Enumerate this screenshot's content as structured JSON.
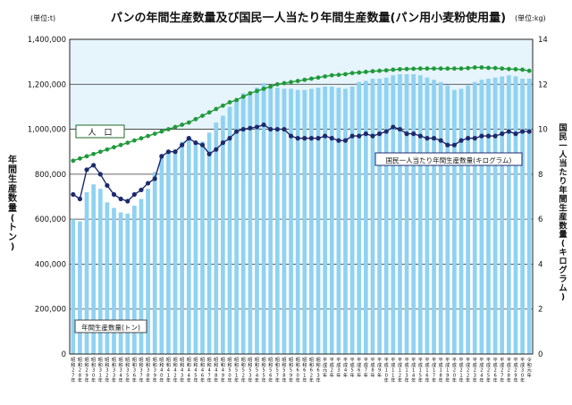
{
  "chart_data": {
    "type": "bar",
    "title": "パンの年間生産数量及び国民一人当たり年間生産数量(パン用小麦粉使用量)",
    "left_unit": "(単位:t)",
    "right_unit": "(単位:kg)",
    "ylabel_left": "年間生産数量(トン)",
    "ylabel_right": "国民一人当たり年間生産数量(キログラム)",
    "ylim_left": [
      0,
      1400000
    ],
    "ylim_right": [
      0,
      14
    ],
    "yticks_left": [
      "0",
      "200,000",
      "400,000",
      "600,000",
      "800,000",
      "1,000,000",
      "1,200,000",
      "1,400,000"
    ],
    "yticks_right": [
      "0",
      "2",
      "4",
      "6",
      "8",
      "10",
      "12",
      "14"
    ],
    "grid": true,
    "categories": [
      "昭和27年",
      "昭和28年",
      "昭和29年",
      "昭和30年",
      "昭和31年",
      "昭和32年",
      "昭和33年",
      "昭和34年",
      "昭和35年",
      "昭和36年",
      "昭和37年",
      "昭和38年",
      "昭和39年",
      "昭和40年",
      "昭和41年",
      "昭和42年",
      "昭和43年",
      "昭和44年",
      "昭和45年",
      "昭和46年",
      "昭和47年",
      "昭和48年",
      "昭和49年",
      "昭和50年",
      "昭和51年",
      "昭和52年",
      "昭和53年",
      "昭和54年",
      "昭和55年",
      "昭和56年",
      "昭和57年",
      "昭和58年",
      "昭和59年",
      "昭和60年",
      "昭和61年",
      "昭和62年",
      "昭和63年",
      "平成元年",
      "平成2年",
      "平成3年",
      "平成4年",
      "平成5年",
      "平成6年",
      "平成7年",
      "平成8年",
      "平成9年",
      "平成10年",
      "平成11年",
      "平成12年",
      "平成13年",
      "平成14年",
      "平成15年",
      "平成16年",
      "平成17年",
      "平成18年",
      "平成19年",
      "平成20年",
      "平成21年",
      "平成22年",
      "平成23年",
      "平成24年",
      "平成25年",
      "平成26年",
      "平成27年",
      "平成28年",
      "平成29年",
      "平成30年",
      "令和元年"
    ],
    "series": [
      {
        "name": "年間生産数量(トン)",
        "type": "bar",
        "axis": "left",
        "color": "#8fd2f2",
        "values": [
          600000,
          590000,
          720000,
          755000,
          735000,
          675000,
          650000,
          630000,
          625000,
          660000,
          690000,
          735000,
          810000,
          875000,
          895000,
          910000,
          945000,
          965000,
          945000,
          945000,
          985000,
          1030000,
          1060000,
          1100000,
          1130000,
          1160000,
          1160000,
          1185000,
          1205000,
          1195000,
          1185000,
          1180000,
          1180000,
          1175000,
          1175000,
          1180000,
          1185000,
          1190000,
          1190000,
          1185000,
          1180000,
          1190000,
          1210000,
          1215000,
          1225000,
          1225000,
          1230000,
          1240000,
          1245000,
          1245000,
          1245000,
          1240000,
          1230000,
          1220000,
          1210000,
          1195000,
          1175000,
          1180000,
          1195000,
          1210000,
          1220000,
          1225000,
          1230000,
          1235000,
          1240000,
          1235000,
          1225000,
          1225000
        ]
      },
      {
        "name": "人口",
        "type": "line",
        "axis": "right",
        "color": "#1f9a3a",
        "values": [
          8.6,
          8.7,
          8.8,
          8.9,
          9.0,
          9.1,
          9.2,
          9.3,
          9.4,
          9.5,
          9.6,
          9.7,
          9.8,
          9.9,
          10.0,
          10.1,
          10.2,
          10.3,
          10.45,
          10.6,
          10.75,
          10.9,
          11.05,
          11.2,
          11.3,
          11.45,
          11.6,
          11.7,
          11.8,
          11.9,
          12.0,
          12.05,
          12.1,
          12.15,
          12.2,
          12.25,
          12.3,
          12.35,
          12.4,
          12.42,
          12.45,
          12.5,
          12.52,
          12.55,
          12.58,
          12.6,
          12.62,
          12.65,
          12.67,
          12.68,
          12.69,
          12.7,
          12.7,
          12.7,
          12.7,
          12.7,
          12.7,
          12.7,
          12.72,
          12.75,
          12.75,
          12.73,
          12.72,
          12.7,
          12.68,
          12.67,
          12.65,
          12.6
        ]
      },
      {
        "name": "国民一人当たり年間生産数量(キログラム)",
        "type": "line",
        "axis": "right",
        "color": "#1c2a6e",
        "values": [
          7.1,
          6.9,
          8.2,
          8.4,
          8.0,
          7.5,
          7.1,
          6.9,
          6.8,
          7.1,
          7.3,
          7.6,
          7.8,
          8.8,
          9.0,
          9.0,
          9.3,
          9.6,
          9.4,
          9.3,
          8.9,
          9.1,
          9.4,
          9.6,
          9.9,
          10.0,
          10.05,
          10.1,
          10.2,
          10.0,
          10.0,
          10.0,
          9.7,
          9.6,
          9.6,
          9.6,
          9.6,
          9.7,
          9.6,
          9.5,
          9.5,
          9.7,
          9.7,
          9.8,
          9.7,
          9.8,
          9.9,
          10.1,
          10.0,
          9.8,
          9.8,
          9.7,
          9.6,
          9.6,
          9.5,
          9.3,
          9.3,
          9.5,
          9.6,
          9.6,
          9.7,
          9.7,
          9.7,
          9.8,
          9.9,
          9.8,
          9.9,
          9.9
        ]
      }
    ],
    "annotations": [
      {
        "text": "人　口",
        "series": "人口"
      },
      {
        "text": "国民一人当たり年間生産数量(キログラム)",
        "series": "国民一人当たり年間生産数量(キログラム)"
      },
      {
        "text": "年間生産数量(トン)",
        "series": "年間生産数量(トン)"
      }
    ]
  }
}
